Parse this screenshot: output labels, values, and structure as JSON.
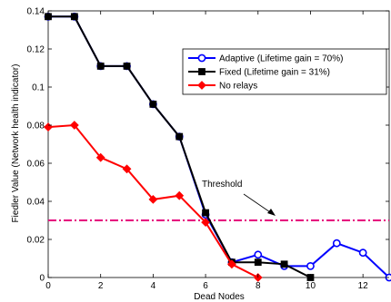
{
  "chart_data": {
    "type": "line",
    "xlabel": "Dead Nodes",
    "ylabel": "Fiedler Value (Network health indicator)",
    "xlim": [
      0,
      13
    ],
    "ylim": [
      0,
      0.14
    ],
    "xticks": [
      0,
      2,
      4,
      6,
      8,
      10,
      12
    ],
    "yticks": [
      0,
      0.02,
      0.04,
      0.06,
      0.08,
      0.1,
      0.12,
      0.14
    ],
    "xtick_labels": [
      "0",
      "2",
      "4",
      "6",
      "8",
      "10",
      "12"
    ],
    "ytick_labels": [
      "0",
      "0.02",
      "0.04",
      "0.06",
      "0.08",
      "0.1",
      "0.12",
      "0.14"
    ],
    "grid": false,
    "legend_position": "top-right",
    "series": [
      {
        "name": "Adaptive (Lifetime gain = 70%)",
        "color": "#0000ff",
        "marker": "circle",
        "x": [
          0,
          1,
          2,
          3,
          4,
          5,
          6,
          7,
          8,
          9,
          10,
          11,
          12,
          13
        ],
        "y": [
          0.137,
          0.137,
          0.111,
          0.111,
          0.091,
          0.074,
          0.033,
          0.008,
          0.012,
          0.006,
          0.006,
          0.018,
          0.013,
          0.0
        ]
      },
      {
        "name": "Fixed (Lifetime gain = 31%)",
        "color": "#000000",
        "marker": "square",
        "x": [
          0,
          1,
          2,
          3,
          4,
          5,
          6,
          7,
          8,
          9,
          10
        ],
        "y": [
          0.137,
          0.137,
          0.111,
          0.111,
          0.091,
          0.074,
          0.034,
          0.008,
          0.008,
          0.007,
          0.0
        ]
      },
      {
        "name": "No relays",
        "color": "#ff0000",
        "marker": "diamond",
        "x": [
          0,
          1,
          2,
          3,
          4,
          5,
          6,
          7,
          8
        ],
        "y": [
          0.079,
          0.08,
          0.063,
          0.057,
          0.041,
          0.043,
          0.029,
          0.007,
          0.0
        ]
      }
    ],
    "threshold": {
      "label": "Threshold",
      "value": 0.03,
      "color": "#e6007e"
    }
  }
}
